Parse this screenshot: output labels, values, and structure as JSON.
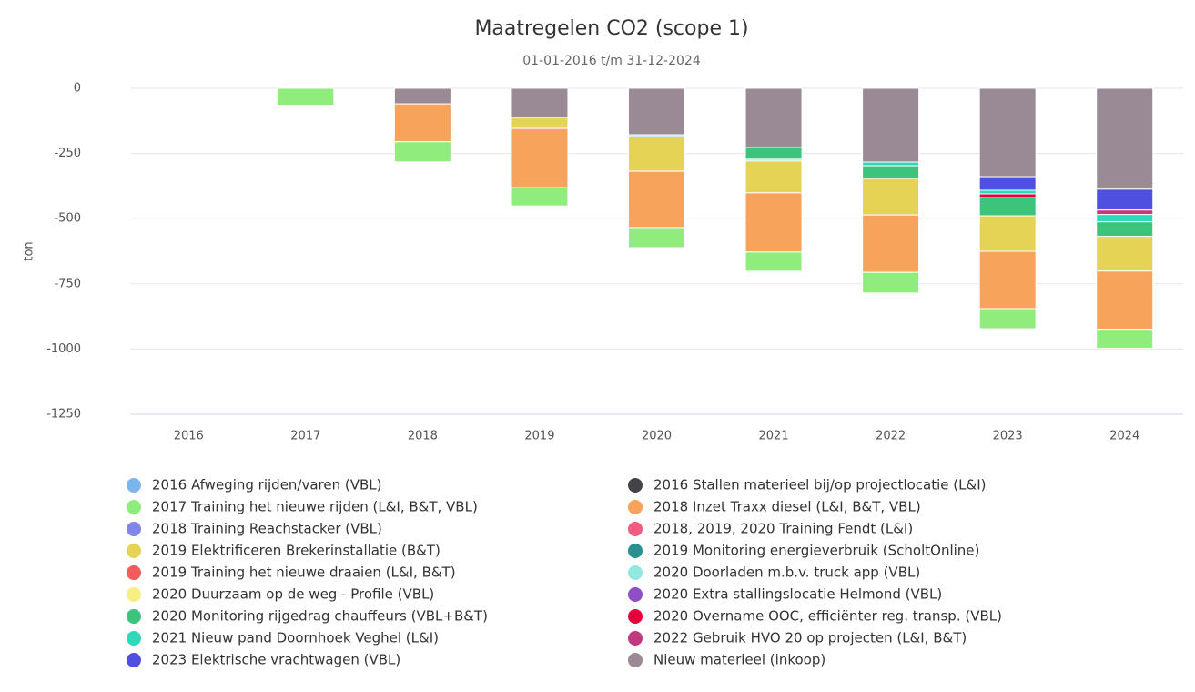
{
  "chart_data": {
    "type": "stacked_bar",
    "title": "Maatregelen CO2 (scope 1)",
    "subtitle": "01-01-2016 t/m 31-12-2024",
    "y_label": "ton",
    "categories": [
      "2016",
      "2017",
      "2018",
      "2019",
      "2020",
      "2021",
      "2022",
      "2023",
      "2024"
    ],
    "ylim": [
      -1250,
      0
    ],
    "yticks": [
      0,
      -250,
      -500,
      -750,
      -1000,
      -1250
    ],
    "grid": true,
    "series": [
      {
        "name": "2016 Afweging rijden/varen (VBL)",
        "color": "#7cb5ec",
        "values": [
          null,
          null,
          null,
          null,
          null,
          null,
          null,
          null,
          null
        ]
      },
      {
        "name": "2016 Stallen materieel bij/op projectlocatie (L&I)",
        "color": "#434348",
        "values": [
          null,
          null,
          null,
          null,
          null,
          null,
          null,
          null,
          null
        ]
      },
      {
        "name": "2017 Training het nieuwe rijden (L&I, B&T, VBL)",
        "color": "#90ed7d",
        "values": [
          null,
          -65,
          -77,
          -70,
          -77,
          -73,
          -79,
          -77,
          -73
        ]
      },
      {
        "name": "2018 Inzet Traxx diesel (L&I, B&T, VBL)",
        "color": "#f7a35c",
        "values": [
          null,
          null,
          -145,
          -227,
          -216,
          -227,
          -220,
          -220,
          -223
        ]
      },
      {
        "name": "2018 Training Reachstacker (VBL)",
        "color": "#8085e9",
        "values": [
          null,
          null,
          null,
          null,
          null,
          null,
          null,
          null,
          null
        ]
      },
      {
        "name": "2018, 2019, 2020 Training Fendt (L&I)",
        "color": "#f15c80",
        "values": [
          null,
          null,
          null,
          null,
          null,
          null,
          null,
          null,
          null
        ]
      },
      {
        "name": "2019 Elektrificeren Brekerinstallatie (B&T)",
        "color": "#e4d354",
        "values": [
          null,
          null,
          null,
          -42,
          -133,
          -122,
          -140,
          -136,
          -133
        ]
      },
      {
        "name": "2019 Monitoring energieverbruik (ScholtOnline)",
        "color": "#2b908f",
        "values": [
          null,
          null,
          null,
          null,
          null,
          null,
          null,
          null,
          null
        ]
      },
      {
        "name": "2019 Training het nieuwe draaien (L&I, B&T)",
        "color": "#f45b5b",
        "values": [
          null,
          null,
          null,
          null,
          null,
          null,
          null,
          null,
          null
        ]
      },
      {
        "name": "2020 Doorladen m.b.v. truck app (VBL)",
        "color": "#91e8e1",
        "values": [
          null,
          null,
          null,
          null,
          -7,
          -7,
          null,
          null,
          null
        ]
      },
      {
        "name": "2020 Duurzaam op de weg - Profile (VBL)",
        "color": "#f7ef81",
        "values": [
          null,
          null,
          null,
          null,
          null,
          null,
          null,
          null,
          null
        ]
      },
      {
        "name": "2020 Extra stallingslocatie Helmond (VBL)",
        "color": "#8e4ec6",
        "values": [
          null,
          null,
          null,
          null,
          null,
          null,
          null,
          null,
          null
        ]
      },
      {
        "name": "2020 Monitoring rijgedrag chauffeurs (VBL+B&T)",
        "color": "#3cc47c",
        "values": [
          null,
          null,
          null,
          null,
          null,
          -45,
          -49,
          -70,
          -56
        ]
      },
      {
        "name": "2020 Overname OOC, efficiënter reg. transp. (VBL)",
        "color": "#e4003a",
        "values": [
          null,
          null,
          null,
          null,
          null,
          null,
          null,
          -14,
          null
        ]
      },
      {
        "name": "2021 Nieuw pand Doornhoek Veghel (L&I)",
        "color": "#2ed8b8",
        "values": [
          null,
          null,
          null,
          null,
          null,
          null,
          -14,
          -14,
          -28
        ]
      },
      {
        "name": "2022 Gebruik HVO 20 op projecten (L&I, B&T)",
        "color": "#c0397f",
        "values": [
          null,
          null,
          null,
          null,
          null,
          null,
          null,
          null,
          -17
        ]
      },
      {
        "name": "2023 Elektrische vrachtwagen (VBL)",
        "color": "#5050e0",
        "values": [
          null,
          null,
          null,
          null,
          null,
          null,
          null,
          -52,
          -80
        ]
      },
      {
        "name": "Nieuw materieel (inkoop)",
        "color": "#9a8a96",
        "values": [
          null,
          null,
          -60,
          -112,
          -178,
          -227,
          -283,
          -339,
          -387
        ]
      }
    ]
  }
}
